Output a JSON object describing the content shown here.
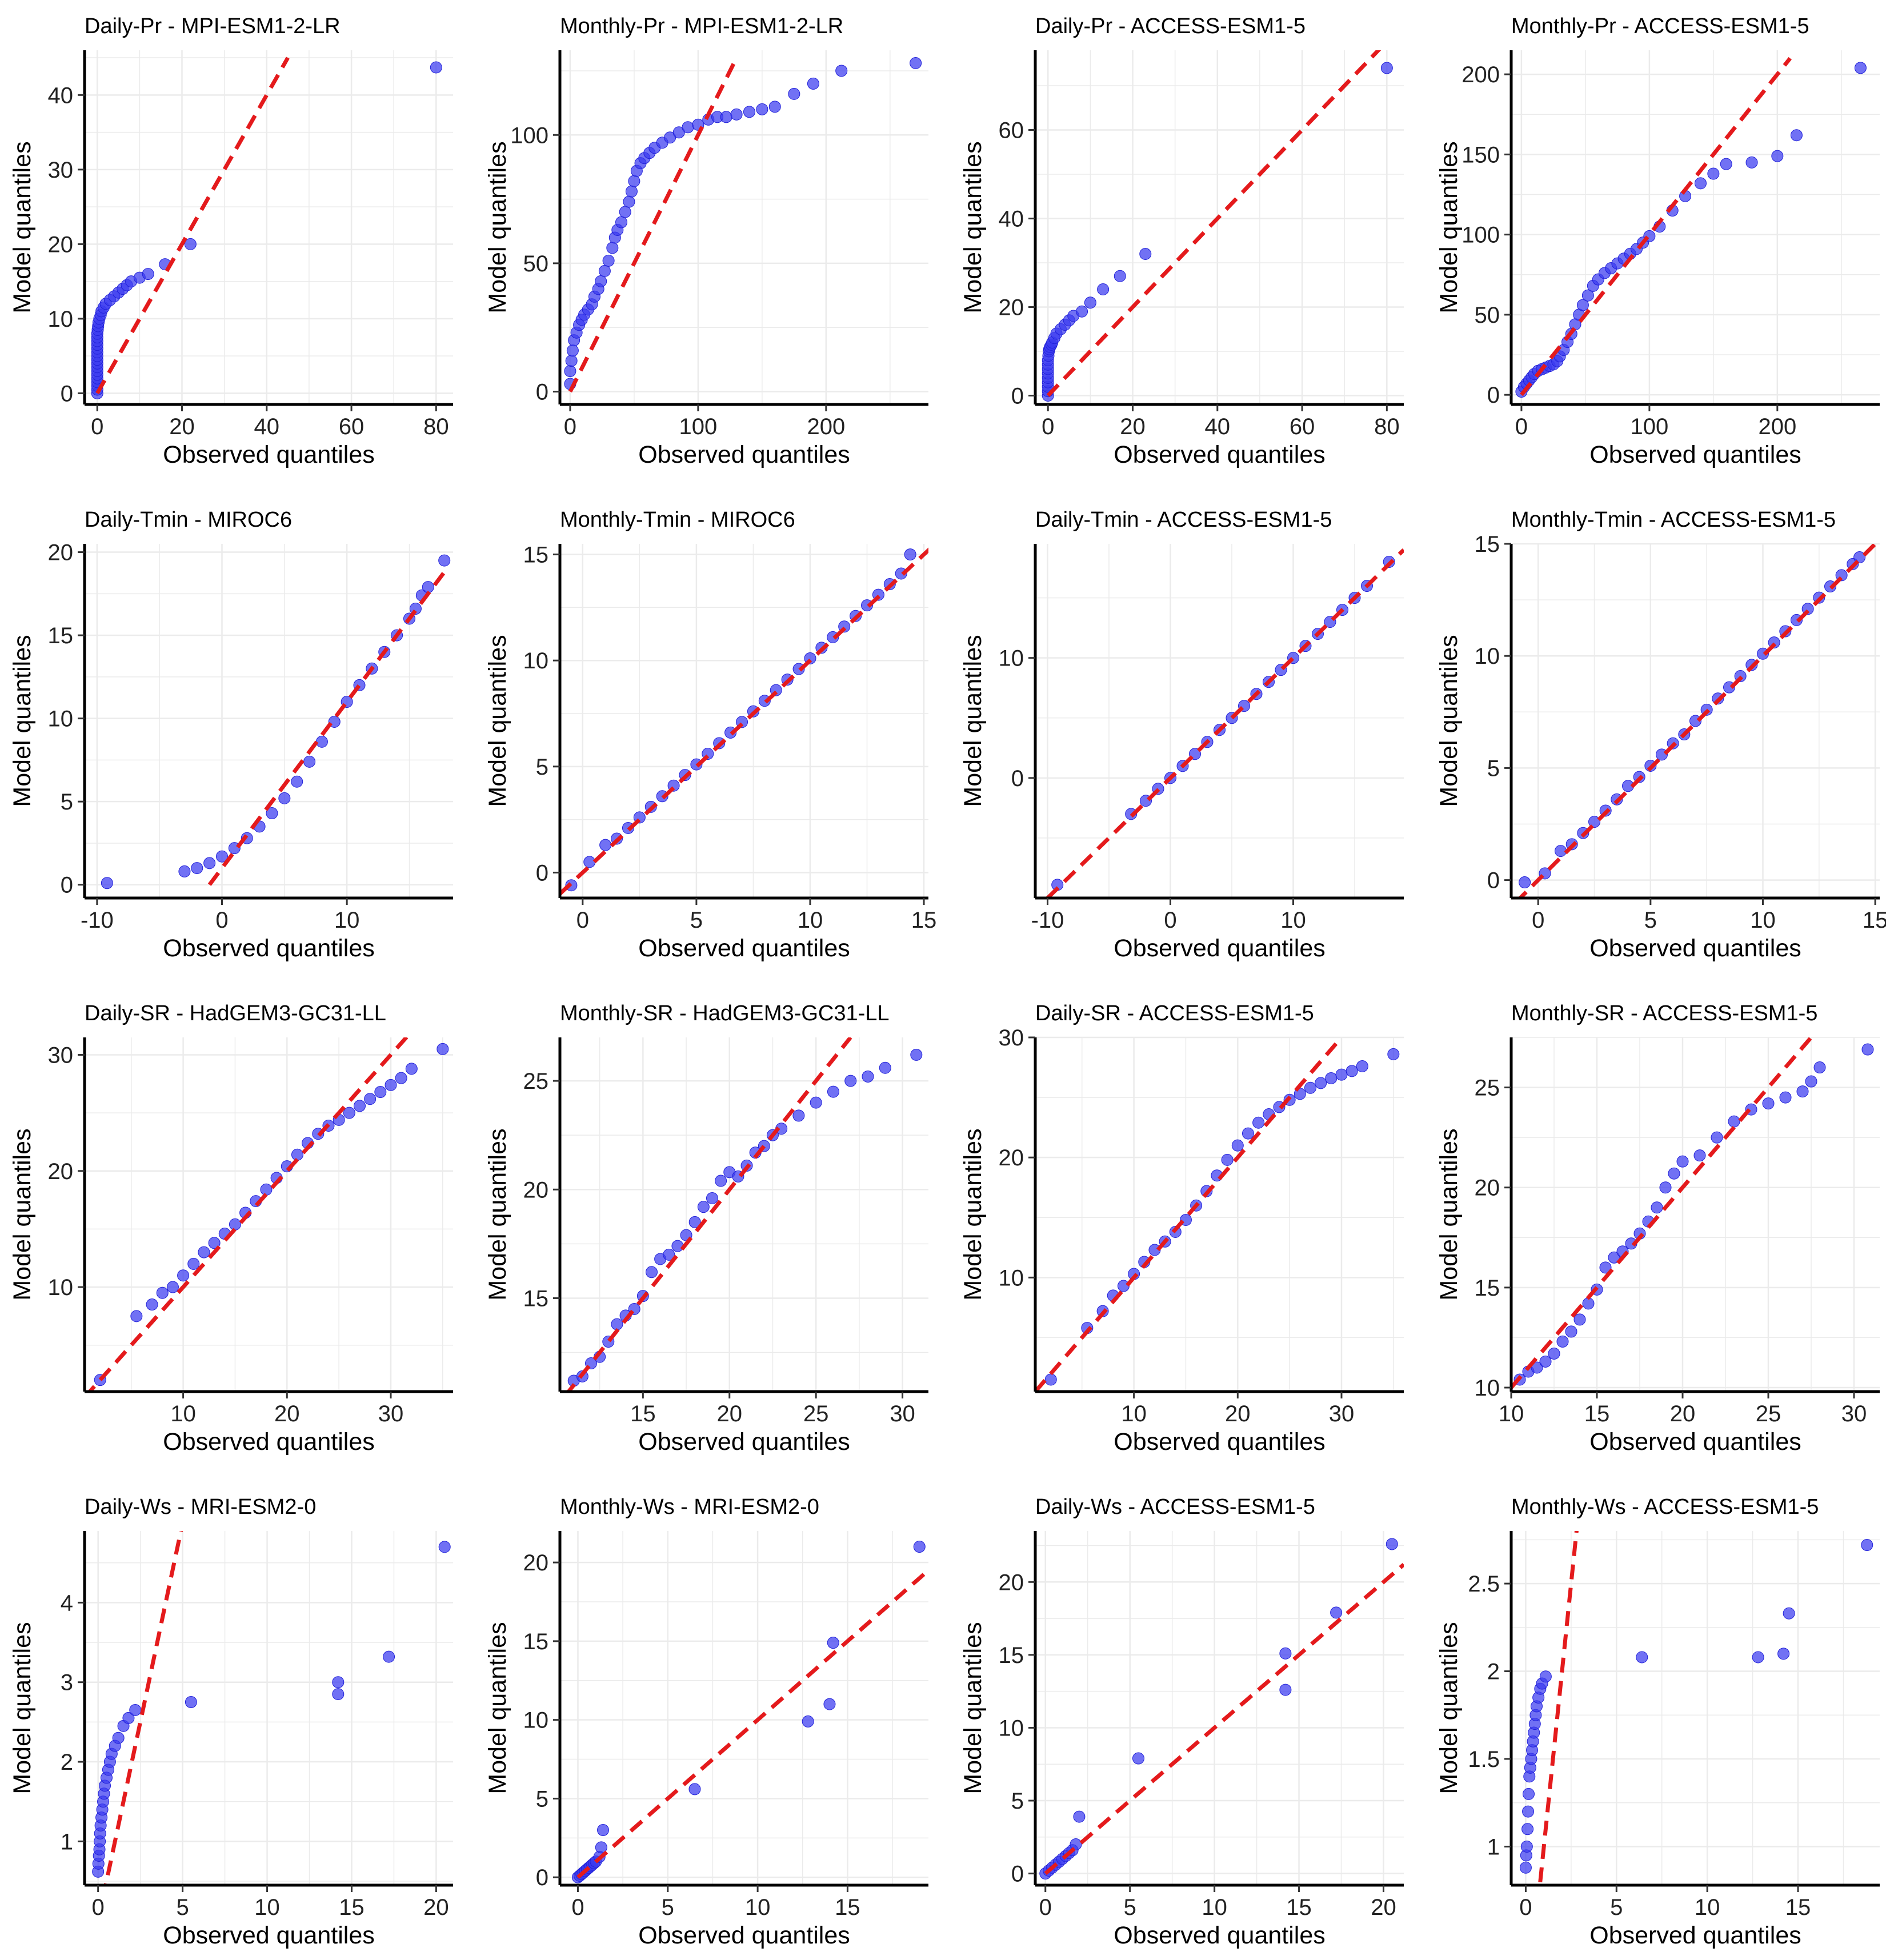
{
  "figure": {
    "x_label": "Observed quantiles",
    "y_label": "Model quantiles",
    "point_color": "#3a3af0",
    "line_color": "#e41a1c",
    "grid_color": "#ebebeb"
  },
  "chart_data": [
    {
      "type": "scatter",
      "title": "Daily-Pr - MPI-ESM1-2-LR",
      "xlim": [
        -3,
        84
      ],
      "ylim": [
        -1.5,
        46
      ],
      "xticks": [
        0,
        20,
        40,
        60,
        80
      ],
      "yticks": [
        0,
        10,
        20,
        30,
        40
      ],
      "ref_line": [
        [
          0,
          0
        ],
        [
          45,
          45
        ]
      ],
      "x": [
        0,
        0,
        0,
        0,
        0,
        0,
        0,
        0,
        0,
        0,
        0,
        0,
        0,
        0,
        0,
        0,
        0,
        0.1,
        0.2,
        0.3,
        0.5,
        0.8,
        1,
        1.5,
        2,
        3,
        4,
        5,
        6,
        7,
        8,
        10,
        12,
        16,
        22,
        80
      ],
      "y": [
        0,
        0.5,
        1,
        1.5,
        2,
        2.5,
        3,
        3.5,
        4,
        4.5,
        5,
        5.5,
        6,
        6.5,
        7,
        7.5,
        8,
        8.5,
        9,
        9.5,
        10,
        10.5,
        11,
        11.5,
        12,
        12.5,
        13,
        13.5,
        14,
        14.5,
        15,
        15.5,
        16,
        17.3,
        20,
        43.7
      ]
    },
    {
      "type": "scatter",
      "title": "Monthly-Pr - MPI-ESM1-2-LR",
      "xlim": [
        -8,
        280
      ],
      "ylim": [
        -5,
        133
      ],
      "xticks": [
        0,
        100,
        200
      ],
      "yticks": [
        0,
        50,
        100
      ],
      "ref_line": [
        [
          0,
          0
        ],
        [
          130,
          130
        ]
      ],
      "x": [
        0,
        0,
        1,
        2,
        3,
        5,
        7,
        9,
        11,
        14,
        17,
        19,
        22,
        24,
        27,
        30,
        33,
        35,
        37,
        40,
        43,
        46,
        48,
        50,
        52,
        55,
        58,
        62,
        66,
        72,
        78,
        85,
        92,
        100,
        108,
        115,
        122,
        130,
        140,
        150,
        160,
        175,
        190,
        212,
        270
      ],
      "y": [
        3,
        8,
        12,
        16,
        20,
        23,
        26,
        28,
        30,
        32,
        34,
        37,
        40,
        43,
        47,
        51,
        56,
        60,
        63,
        66,
        70,
        74,
        78,
        82,
        86,
        89,
        91,
        93,
        95,
        97,
        99,
        101,
        103,
        104,
        106,
        107,
        107,
        108,
        109,
        110,
        111,
        116,
        120,
        125,
        128
      ]
    },
    {
      "type": "scatter",
      "title": "Daily-Pr - ACCESS-ESM1-5",
      "xlim": [
        -3,
        84
      ],
      "ylim": [
        -2,
        78
      ],
      "xticks": [
        0,
        20,
        40,
        60,
        80
      ],
      "yticks": [
        0,
        20,
        40,
        60
      ],
      "ref_line": [
        [
          0,
          0
        ],
        [
          80,
          80
        ]
      ],
      "x": [
        0,
        0,
        0,
        0,
        0,
        0,
        0,
        0,
        0,
        0.1,
        0.2,
        0.3,
        0.5,
        0.8,
        1,
        1.5,
        2,
        3,
        4,
        5,
        6,
        8,
        10,
        13,
        17,
        23,
        80
      ],
      "y": [
        0,
        1,
        2,
        3,
        4,
        5,
        6,
        7,
        8,
        9,
        10,
        10.5,
        11,
        11.5,
        12,
        13,
        14,
        15,
        16,
        17,
        18,
        19,
        21,
        24,
        27,
        32,
        74
      ]
    },
    {
      "type": "scatter",
      "title": "Monthly-Pr - ACCESS-ESM1-5",
      "xlim": [
        -8,
        280
      ],
      "ylim": [
        -6,
        215
      ],
      "xticks": [
        0,
        100,
        200
      ],
      "yticks": [
        0,
        50,
        100,
        150,
        200
      ],
      "ref_line": [
        [
          0,
          0
        ],
        [
          210,
          210
        ]
      ],
      "x": [
        0,
        2,
        4,
        6,
        8,
        10,
        13,
        16,
        19,
        22,
        25,
        28,
        30,
        33,
        36,
        39,
        42,
        45,
        48,
        52,
        56,
        60,
        65,
        70,
        75,
        80,
        85,
        90,
        95,
        100,
        108,
        118,
        128,
        140,
        150,
        160,
        180,
        200,
        215,
        265
      ],
      "y": [
        2,
        5,
        7,
        9,
        11,
        13,
        15,
        16,
        17,
        18,
        19,
        21,
        24,
        28,
        33,
        38,
        44,
        50,
        56,
        62,
        68,
        72,
        76,
        79,
        82,
        85,
        88,
        91,
        95,
        99,
        105,
        115,
        124,
        132,
        138,
        144,
        145,
        149,
        162,
        204
      ]
    },
    {
      "type": "scatter",
      "title": "Daily-Tmin - MIROC6",
      "xlim": [
        -11,
        18.5
      ],
      "ylim": [
        -0.8,
        20.5
      ],
      "xticks": [
        -10,
        0,
        10
      ],
      "yticks": [
        0,
        5,
        10,
        15,
        20
      ],
      "ref_line": [
        [
          -1,
          0
        ],
        [
          18,
          19
        ]
      ],
      "x": [
        -9.2,
        -3,
        -2,
        -1,
        0,
        1,
        2,
        3,
        4,
        5,
        6,
        7,
        8,
        9,
        10,
        11,
        12,
        13,
        14,
        15,
        15.5,
        16,
        16.5,
        17.8
      ],
      "y": [
        0.1,
        0.8,
        1.0,
        1.3,
        1.7,
        2.2,
        2.8,
        3.5,
        4.3,
        5.2,
        6.2,
        7.4,
        8.6,
        9.8,
        11.0,
        12.0,
        13.0,
        14.0,
        15.0,
        16.0,
        16.6,
        17.4,
        17.9,
        19.5
      ]
    },
    {
      "type": "scatter",
      "title": "Monthly-Tmin - MIROC6",
      "xlim": [
        -1,
        15.2
      ],
      "ylim": [
        -1.2,
        15.5
      ],
      "xticks": [
        0,
        5,
        10,
        15
      ],
      "yticks": [
        0,
        5,
        10,
        15
      ],
      "ref_line": [
        [
          -1,
          -1
        ],
        [
          15.5,
          15.5
        ]
      ],
      "x": [
        -0.5,
        0.3,
        1,
        1.5,
        2,
        2.5,
        3,
        3.5,
        4,
        4.5,
        5,
        5.5,
        6,
        6.5,
        7,
        7.5,
        8,
        8.5,
        9,
        9.5,
        10,
        10.5,
        11,
        11.5,
        12,
        12.5,
        13,
        13.5,
        14,
        14.4
      ],
      "y": [
        -0.6,
        0.5,
        1.3,
        1.6,
        2.1,
        2.6,
        3.1,
        3.6,
        4.1,
        4.6,
        5.1,
        5.6,
        6.1,
        6.6,
        7.1,
        7.6,
        8.1,
        8.6,
        9.1,
        9.6,
        10.1,
        10.6,
        11.1,
        11.6,
        12.1,
        12.6,
        13.1,
        13.6,
        14.1,
        15.0
      ]
    },
    {
      "type": "scatter",
      "title": "Daily-Tmin - ACCESS-ESM1-5",
      "xlim": [
        -11,
        19
      ],
      "ylim": [
        -10,
        19.5
      ],
      "xticks": [
        -10,
        0,
        10
      ],
      "yticks": [
        0,
        10
      ],
      "ref_line": [
        [
          -10,
          -10
        ],
        [
          19,
          19
        ]
      ],
      "x": [
        -9.2,
        -3.2,
        -2,
        -1,
        0,
        1,
        2,
        3,
        4,
        5,
        6,
        7,
        8,
        9,
        10,
        11,
        12,
        13,
        14,
        15,
        16,
        17.8
      ],
      "y": [
        -8.9,
        -3.0,
        -1.9,
        -0.9,
        0,
        1.0,
        2.0,
        3.0,
        4.0,
        5.0,
        6.0,
        7.0,
        8.0,
        9.0,
        10.0,
        11.0,
        12.0,
        13.0,
        14.0,
        15.0,
        16.0,
        18.0
      ]
    },
    {
      "type": "scatter",
      "title": "Monthly-Tmin - ACCESS-ESM1-5",
      "xlim": [
        -1.2,
        15.2
      ],
      "ylim": [
        -0.8,
        15
      ],
      "xticks": [
        0,
        5,
        10,
        15
      ],
      "yticks": [
        0,
        5,
        10,
        15
      ],
      "ref_line": [
        [
          -1,
          -1
        ],
        [
          15,
          15
        ]
      ],
      "x": [
        -0.6,
        0.3,
        1,
        1.5,
        2,
        2.5,
        3,
        3.5,
        4,
        4.5,
        5,
        5.5,
        6,
        6.5,
        7,
        7.5,
        8,
        8.5,
        9,
        9.5,
        10,
        10.5,
        11,
        11.5,
        12,
        12.5,
        13,
        13.5,
        14,
        14.3
      ],
      "y": [
        -0.1,
        0.3,
        1.3,
        1.6,
        2.1,
        2.6,
        3.1,
        3.6,
        4.2,
        4.6,
        5.1,
        5.6,
        6.1,
        6.5,
        7.1,
        7.6,
        8.1,
        8.6,
        9.1,
        9.6,
        10.1,
        10.6,
        11.1,
        11.6,
        12.1,
        12.6,
        13.1,
        13.6,
        14.1,
        14.4
      ]
    },
    {
      "type": "scatter",
      "title": "Daily-SR - HadGEM3-GC31-LL",
      "xlim": [
        0.5,
        36
      ],
      "ylim": [
        1,
        31.5
      ],
      "xticks": [
        10,
        20,
        30
      ],
      "yticks": [
        10,
        20,
        30
      ],
      "ref_line": [
        [
          0.5,
          0.5
        ],
        [
          32,
          32
        ]
      ],
      "x": [
        2,
        5.5,
        7,
        8,
        9,
        10,
        11,
        12,
        13,
        14,
        15,
        16,
        17,
        18,
        19,
        20,
        21,
        22,
        23,
        24,
        25,
        26,
        27,
        28,
        29,
        30,
        31,
        32,
        35
      ],
      "y": [
        2,
        7.5,
        8.5,
        9.5,
        10,
        11,
        12,
        13,
        13.8,
        14.6,
        15.4,
        16.4,
        17.4,
        18.4,
        19.4,
        20.4,
        21.4,
        22.4,
        23.2,
        23.9,
        24.4,
        25,
        25.6,
        26.2,
        26.8,
        27.4,
        28,
        28.8,
        30.5
      ]
    },
    {
      "type": "scatter",
      "title": "Monthly-SR - HadGEM3-GC31-LL",
      "xlim": [
        10.2,
        31.5
      ],
      "ylim": [
        10.7,
        27
      ],
      "xticks": [
        10,
        15,
        20,
        25,
        30
      ],
      "yticks": [
        15,
        20,
        25
      ],
      "ref_line": [
        [
          10.5,
          10.5
        ],
        [
          27,
          27
        ]
      ],
      "x": [
        11,
        11.5,
        12,
        12.5,
        13,
        13.5,
        14,
        14.5,
        15,
        15.5,
        16,
        16.5,
        17,
        17.5,
        18,
        18.5,
        19,
        19.5,
        20,
        20.5,
        21,
        21.5,
        22,
        22.5,
        23,
        24,
        25,
        26,
        27,
        28,
        29,
        30.8
      ],
      "y": [
        11.2,
        11.4,
        12,
        12.3,
        13,
        13.8,
        14.2,
        14.5,
        15.1,
        16.2,
        16.8,
        17,
        17.4,
        17.9,
        18.5,
        19.2,
        19.6,
        20.4,
        20.8,
        20.6,
        21.1,
        21.7,
        22,
        22.5,
        22.8,
        23.4,
        24,
        24.5,
        25,
        25.2,
        25.6,
        26.2
      ]
    },
    {
      "type": "scatter",
      "title": "Daily-SR - ACCESS-ESM1-5",
      "xlim": [
        0.5,
        36
      ],
      "ylim": [
        0.5,
        30
      ],
      "xticks": [
        10,
        20,
        30
      ],
      "yticks": [
        10,
        20,
        30
      ],
      "ref_line": [
        [
          0.5,
          0.5
        ],
        [
          30,
          30
        ]
      ],
      "x": [
        2,
        5.5,
        7,
        8,
        9,
        10,
        11,
        12,
        13,
        14,
        15,
        16,
        17,
        18,
        19,
        20,
        21,
        22,
        23,
        24,
        25,
        26,
        27,
        28,
        29,
        30,
        31,
        32,
        35
      ],
      "y": [
        1.5,
        5.8,
        7.2,
        8.5,
        9.3,
        10.3,
        11.3,
        12.3,
        13,
        13.8,
        14.8,
        16,
        17.2,
        18.5,
        19.8,
        21,
        22,
        22.9,
        23.6,
        24.2,
        24.8,
        25.3,
        25.8,
        26.2,
        26.6,
        26.9,
        27.2,
        27.6,
        28.6
      ]
    },
    {
      "type": "scatter",
      "title": "Monthly-SR - ACCESS-ESM1-5",
      "xlim": [
        10,
        31.5
      ],
      "ylim": [
        9.8,
        27.5
      ],
      "xticks": [
        10,
        15,
        20,
        25,
        30
      ],
      "yticks": [
        10,
        15,
        20,
        25
      ],
      "ref_line": [
        [
          10,
          10
        ],
        [
          27.5,
          27.5
        ]
      ],
      "x": [
        10.5,
        11,
        11.5,
        12,
        12.5,
        13,
        13.5,
        14,
        14.5,
        15,
        15.5,
        16,
        16.5,
        17,
        17.5,
        18,
        18.5,
        19,
        19.5,
        20,
        21,
        22,
        23,
        24,
        25,
        26,
        27,
        27.5,
        28,
        30.8
      ],
      "y": [
        10.4,
        10.8,
        11,
        11.3,
        11.7,
        12.3,
        12.8,
        13.4,
        14.2,
        14.9,
        16,
        16.5,
        16.8,
        17.2,
        17.7,
        18.3,
        19,
        20,
        20.7,
        21.3,
        21.6,
        22.5,
        23.3,
        23.9,
        24.2,
        24.5,
        24.8,
        25.3,
        26,
        26.9
      ]
    },
    {
      "type": "scatter",
      "title": "Daily-Ws - MRI-ESM2-0",
      "xlim": [
        -0.8,
        21
      ],
      "ylim": [
        0.45,
        4.9
      ],
      "xticks": [
        0,
        5,
        10,
        15,
        20
      ],
      "yticks": [
        1,
        2,
        3,
        4
      ],
      "ref_line": [
        [
          0,
          0
        ],
        [
          5,
          5
        ]
      ],
      "x": [
        0,
        0.02,
        0.05,
        0.08,
        0.1,
        0.12,
        0.15,
        0.2,
        0.25,
        0.3,
        0.35,
        0.4,
        0.5,
        0.6,
        0.7,
        0.8,
        1,
        1.2,
        1.5,
        1.8,
        2.2,
        5.5,
        14.2,
        14.2,
        17.2,
        20.5
      ],
      "y": [
        0.62,
        0.72,
        0.82,
        0.9,
        1,
        1.1,
        1.2,
        1.3,
        1.4,
        1.5,
        1.6,
        1.7,
        1.8,
        1.9,
        2,
        2.1,
        2.2,
        2.3,
        2.45,
        2.55,
        2.65,
        2.75,
        2.85,
        3.0,
        3.32,
        4.7
      ]
    },
    {
      "type": "scatter",
      "title": "Monthly-Ws - MRI-ESM2-0",
      "xlim": [
        -1,
        19.5
      ],
      "ylim": [
        -0.5,
        22
      ],
      "xticks": [
        0,
        5,
        10,
        15
      ],
      "yticks": [
        0,
        5,
        10,
        15,
        20
      ],
      "ref_line": [
        [
          0,
          0
        ],
        [
          19.5,
          19.5
        ]
      ],
      "x": [
        0,
        0.1,
        0.2,
        0.3,
        0.4,
        0.5,
        0.6,
        0.7,
        0.8,
        0.9,
        1,
        1.2,
        1.3,
        1.4,
        6.5,
        12.8,
        14,
        14.2,
        19
      ],
      "y": [
        0,
        0.1,
        0.2,
        0.3,
        0.4,
        0.5,
        0.6,
        0.7,
        0.8,
        0.9,
        1,
        1.3,
        1.9,
        3,
        5.6,
        9.9,
        11,
        14.9,
        21
      ]
    },
    {
      "type": "scatter",
      "title": "Daily-Ws - ACCESS-ESM1-5",
      "xlim": [
        -0.6,
        21.2
      ],
      "ylim": [
        -0.8,
        23.5
      ],
      "xticks": [
        0,
        5,
        10,
        15,
        20
      ],
      "yticks": [
        0,
        5,
        10,
        15,
        20
      ],
      "ref_line": [
        [
          0,
          0
        ],
        [
          21.2,
          21.2
        ]
      ],
      "x": [
        0,
        0.2,
        0.4,
        0.6,
        0.8,
        1,
        1.2,
        1.4,
        1.6,
        1.8,
        2,
        5.5,
        14.2,
        14.2,
        17.2,
        20.5
      ],
      "y": [
        0,
        0.2,
        0.4,
        0.6,
        0.8,
        1,
        1.2,
        1.4,
        1.6,
        2.0,
        3.9,
        7.9,
        12.6,
        15.1,
        17.9,
        22.6
      ]
    },
    {
      "type": "scatter",
      "title": "Monthly-Ws - ACCESS-ESM1-5",
      "xlim": [
        -0.8,
        19.5
      ],
      "ylim": [
        0.78,
        2.8
      ],
      "xticks": [
        0,
        5,
        10,
        15
      ],
      "yticks": [
        1.0,
        1.5,
        2.0,
        2.5
      ],
      "ref_line": [
        [
          0,
          0
        ],
        [
          3,
          3
        ]
      ],
      "x": [
        0,
        0.03,
        0.06,
        0.1,
        0.13,
        0.16,
        0.2,
        0.25,
        0.3,
        0.35,
        0.4,
        0.45,
        0.5,
        0.55,
        0.6,
        0.7,
        0.8,
        0.9,
        1.1,
        6.4,
        12.8,
        14.2,
        14.5,
        18.8
      ],
      "y": [
        0.88,
        0.95,
        1.0,
        1.1,
        1.2,
        1.3,
        1.4,
        1.45,
        1.5,
        1.55,
        1.6,
        1.65,
        1.7,
        1.75,
        1.8,
        1.85,
        1.9,
        1.93,
        1.97,
        2.08,
        2.08,
        2.1,
        2.33,
        2.72
      ]
    }
  ]
}
